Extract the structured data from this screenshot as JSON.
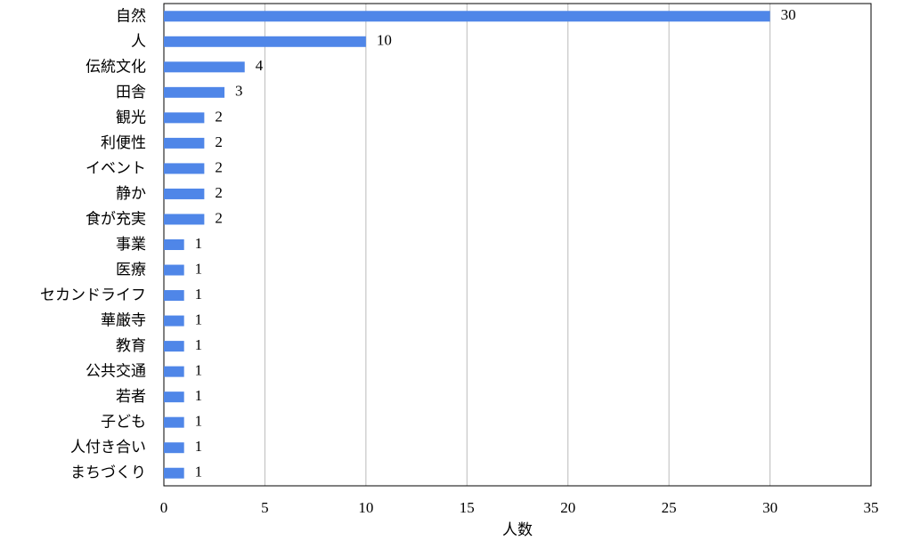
{
  "chart_data": {
    "type": "bar",
    "orientation": "horizontal",
    "x_label": "人数",
    "categories": [
      "自然",
      "人",
      "伝統文化",
      "田舎",
      "観光",
      "利便性",
      "イベント",
      "静か",
      "食が充実",
      "事業",
      "医療",
      "セカンドライフ",
      "華厳寺",
      "教育",
      "公共交通",
      "若者",
      "子ども",
      "人付き合い",
      "まちづくり"
    ],
    "values": [
      30,
      10,
      4,
      3,
      2,
      2,
      2,
      2,
      2,
      1,
      1,
      1,
      1,
      1,
      1,
      1,
      1,
      1,
      1
    ],
    "color": "#4f86e8",
    "xlim": [
      0,
      35
    ],
    "xticks": [
      0,
      5,
      10,
      15,
      20,
      25,
      30,
      35
    ],
    "grid": true
  }
}
